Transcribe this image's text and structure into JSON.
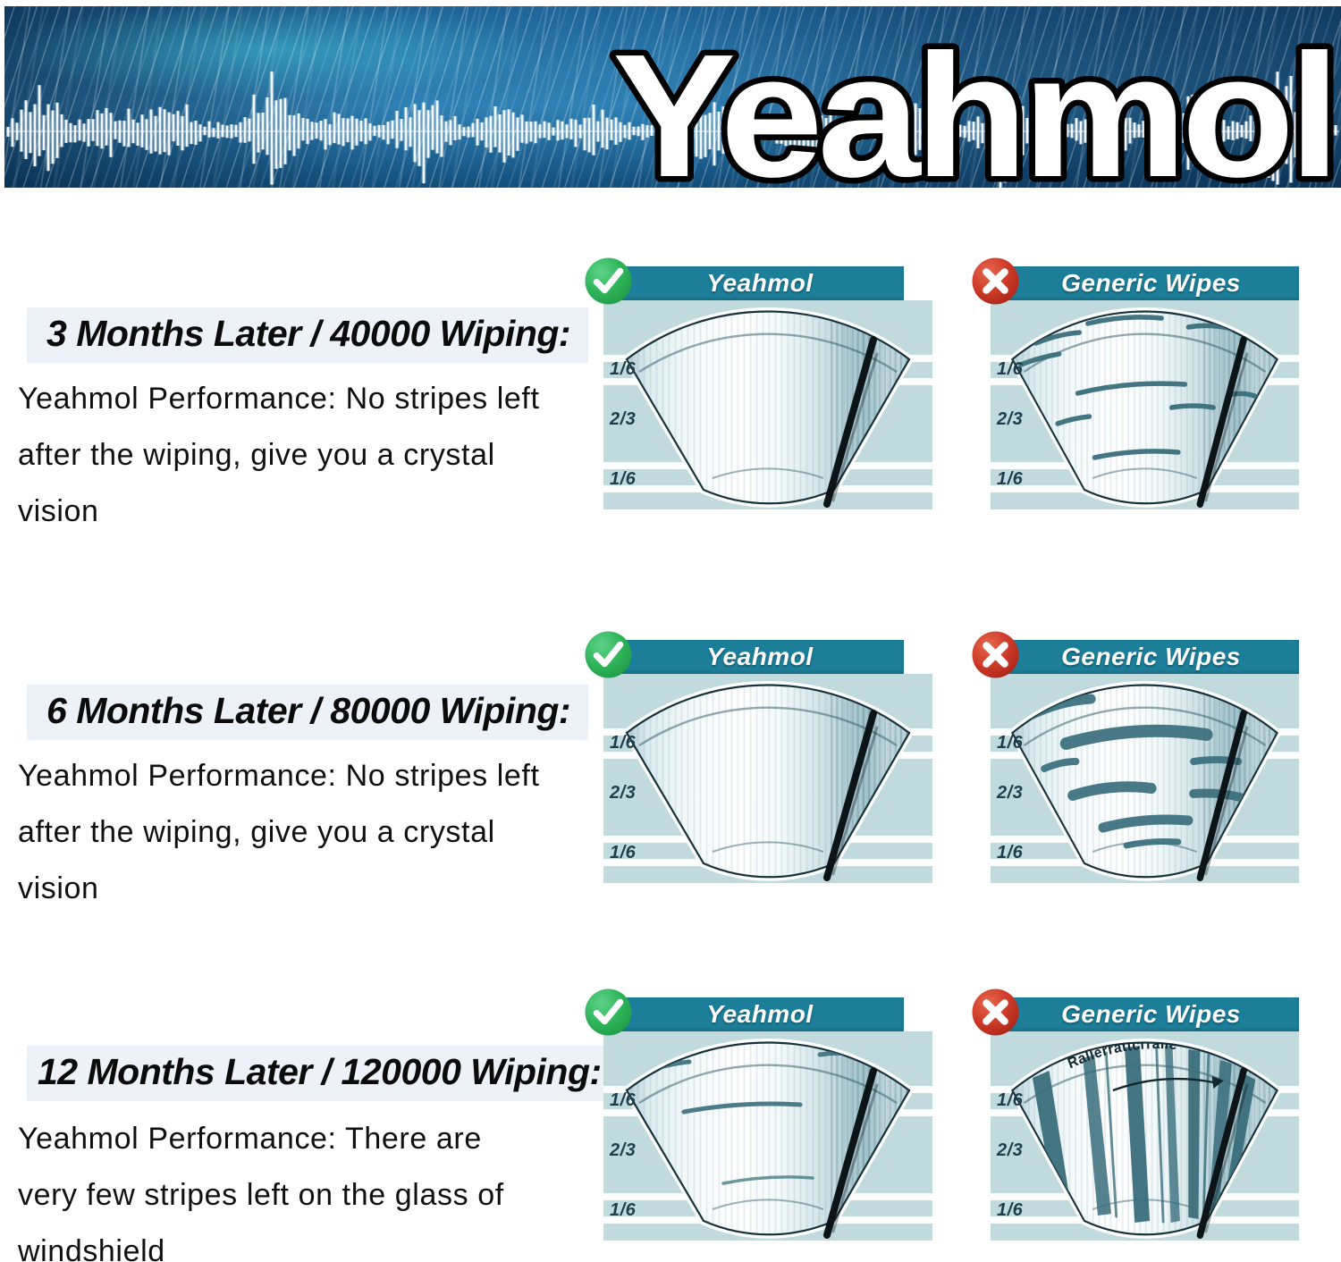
{
  "brand": {
    "title": "Yeahmol"
  },
  "zone_labels": [
    "1/6",
    "2/3",
    "1/6"
  ],
  "rows": [
    {
      "heading": "3 Months Later / 40000 Wiping:",
      "body_lines": [
        "Yeahmol Performance: No stripes left",
        "after the wiping, give you a crystal",
        "vision"
      ],
      "good": {
        "title": "Yeahmol",
        "badge_icon": "check-icon",
        "result": "clean glass, no stripes"
      },
      "bad": {
        "title": "Generic Wipes",
        "badge_icon": "x-icon",
        "result": "light streaks left"
      }
    },
    {
      "heading": "6 Months Later / 80000 Wiping:",
      "body_lines": [
        "Yeahmol Performance: No stripes left",
        "after the wiping, give you a crystal",
        "vision"
      ],
      "good": {
        "title": "Yeahmol",
        "badge_icon": "check-icon",
        "result": "clean glass, no stripes"
      },
      "bad": {
        "title": "Generic Wipes",
        "badge_icon": "x-icon",
        "result": "heavy smear streaks"
      }
    },
    {
      "heading": "12 Months Later / 120000 Wiping:",
      "body_lines": [
        "Yeahmol Performance: There are",
        "very few stripes left on the glass of",
        "windshield"
      ],
      "good": {
        "title": "Yeahmol",
        "badge_icon": "check-icon",
        "result": "very few thin stripes"
      },
      "bad": {
        "title": "Generic Wipes",
        "badge_icon": "x-icon",
        "result": "severe vertical streaks",
        "annotation": "Rallerrattcrralle"
      }
    }
  ],
  "colors": {
    "header_teal": "#1d7e99",
    "panel_bg": "#c0dade",
    "good_green": "#2fb45a",
    "bad_red": "#cd3a28",
    "streak": "#3a6e7c",
    "banner_blue": "#2a77ab",
    "heading_highlight": "#edf2f9"
  }
}
